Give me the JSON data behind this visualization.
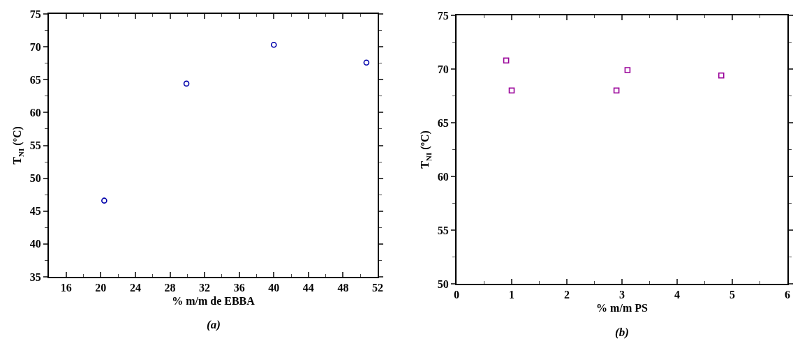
{
  "chart_data": [
    {
      "type": "scatter",
      "xlabel": "% m/m de EBBA",
      "ylabel": "T$_{NI}$ (ºC)",
      "annotations": [
        "(a)"
      ],
      "marker": "circle",
      "grid": false,
      "x": [
        20.4,
        29.9,
        40,
        50.7
      ],
      "series": [
        {
          "color": "#0000aa",
          "values": [
            46.6,
            64.4,
            70.3,
            67.6
          ]
        }
      ],
      "xlim": [
        14,
        52
      ],
      "xticks": [
        16,
        20,
        24,
        28,
        32,
        36,
        40,
        44,
        48,
        52
      ],
      "ylim": [
        35,
        75
      ],
      "yticks": [
        35,
        40,
        45,
        50,
        55,
        60,
        65,
        70,
        75
      ]
    },
    {
      "type": "scatter",
      "xlabel": "% m/m PS",
      "ylabel": "T$_{NI}$ (ºC)",
      "annotations": [
        "(b)"
      ],
      "marker": "square",
      "grid": false,
      "x": [
        0.9,
        1.0,
        2.9,
        3.1,
        4.8
      ],
      "series": [
        {
          "color": "#990099",
          "values": [
            70.8,
            68.0,
            68.0,
            69.9,
            69.4
          ]
        }
      ],
      "xlim": [
        0,
        6
      ],
      "xticks": [
        0,
        1,
        2,
        3,
        4,
        5,
        6
      ],
      "ylim": [
        50,
        75
      ],
      "yticks": [
        50,
        55,
        60,
        65,
        70,
        75
      ]
    }
  ]
}
